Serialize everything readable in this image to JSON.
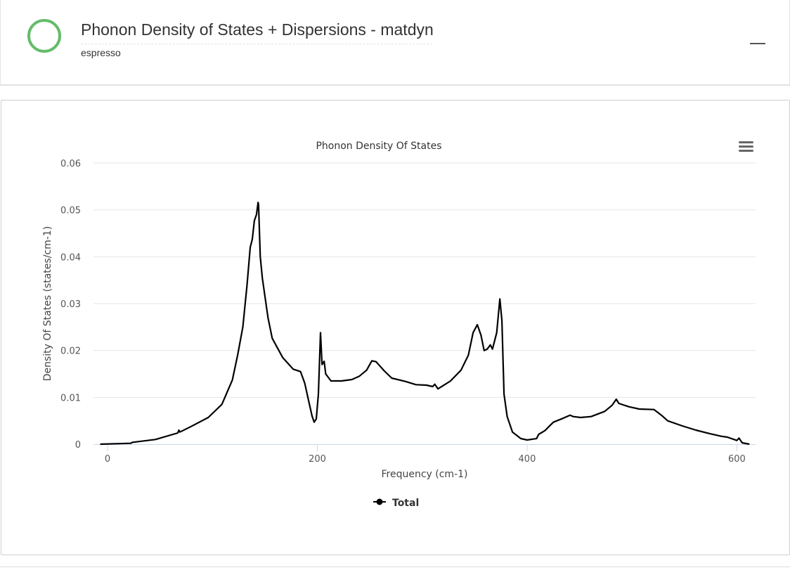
{
  "header": {
    "title": "Phonon Density of States + Dispersions - matdyn",
    "subtitle": "espresso",
    "status_color": "#66bb6a",
    "collapse_icon": "minus-icon"
  },
  "chart_menu_icon": "hamburger-menu-icon",
  "chart_data": {
    "type": "line",
    "title": "Phonon Density Of States",
    "xlabel": "Frequency (cm-1)",
    "ylabel": "Density Of States (states/cm-1)",
    "xlim": [
      -13.4,
      617.8
    ],
    "ylim": [
      0,
      0.06
    ],
    "xticks": [
      0,
      200,
      400,
      600
    ],
    "yticks": [
      0,
      0.01,
      0.02,
      0.03,
      0.04,
      0.05,
      0.06
    ],
    "ytick_labels": [
      "0",
      "0.01",
      "0.02",
      "0.03",
      "0.04",
      "0.05",
      "0.06"
    ],
    "grid": true,
    "legend_position": "bottom",
    "series": [
      {
        "name": "Total",
        "color": "#000000",
        "x": [
          -7,
          22,
          24,
          45.6,
          67,
          68,
          69,
          79,
          96,
          109,
          119,
          124,
          129,
          133,
          136,
          138,
          140,
          142,
          143.5,
          144,
          145.6,
          147.6,
          153,
          157,
          167,
          177,
          184,
          188,
          192,
          195,
          197,
          199,
          201,
          203,
          204.5,
          206.5,
          208,
          213,
          223,
          233,
          240,
          247,
          252,
          256,
          264,
          271,
          284,
          294,
          304,
          310,
          312,
          315,
          327,
          337,
          344,
          348.5,
          352.5,
          356,
          359,
          362,
          365,
          367,
          371,
          374,
          376,
          378,
          381,
          386,
          394,
          400,
          409,
          411,
          417,
          425,
          434,
          441,
          444,
          451,
          461,
          474,
          481,
          485,
          487.5,
          497,
          507,
          521,
          528,
          534,
          548,
          561,
          575,
          585,
          591,
          600,
          602,
          605,
          612
        ],
        "y": [
          0,
          0.0002,
          0.0004,
          0.001,
          0.0024,
          0.003,
          0.0026,
          0.0037,
          0.0057,
          0.0085,
          0.0137,
          0.019,
          0.025,
          0.034,
          0.042,
          0.0437,
          0.0477,
          0.049,
          0.0516,
          0.051,
          0.04,
          0.0354,
          0.027,
          0.0226,
          0.0185,
          0.016,
          0.0155,
          0.013,
          0.009,
          0.006,
          0.0047,
          0.0054,
          0.0107,
          0.0238,
          0.017,
          0.0177,
          0.015,
          0.0135,
          0.0135,
          0.0138,
          0.0145,
          0.0158,
          0.0178,
          0.0176,
          0.0156,
          0.0141,
          0.0134,
          0.0127,
          0.0126,
          0.0123,
          0.0128,
          0.0118,
          0.0135,
          0.0158,
          0.019,
          0.0238,
          0.0255,
          0.0233,
          0.02,
          0.0203,
          0.0212,
          0.0203,
          0.0238,
          0.031,
          0.0264,
          0.0107,
          0.0059,
          0.0026,
          0.0012,
          0.0009,
          0.0012,
          0.0021,
          0.0029,
          0.0047,
          0.0055,
          0.0062,
          0.0059,
          0.0057,
          0.0059,
          0.007,
          0.0083,
          0.0096,
          0.0087,
          0.008,
          0.0075,
          0.0074,
          0.0062,
          0.005,
          0.0039,
          0.003,
          0.0022,
          0.0017,
          0.0015,
          0.0008,
          0.0013,
          0.0003,
          0
        ]
      }
    ]
  }
}
